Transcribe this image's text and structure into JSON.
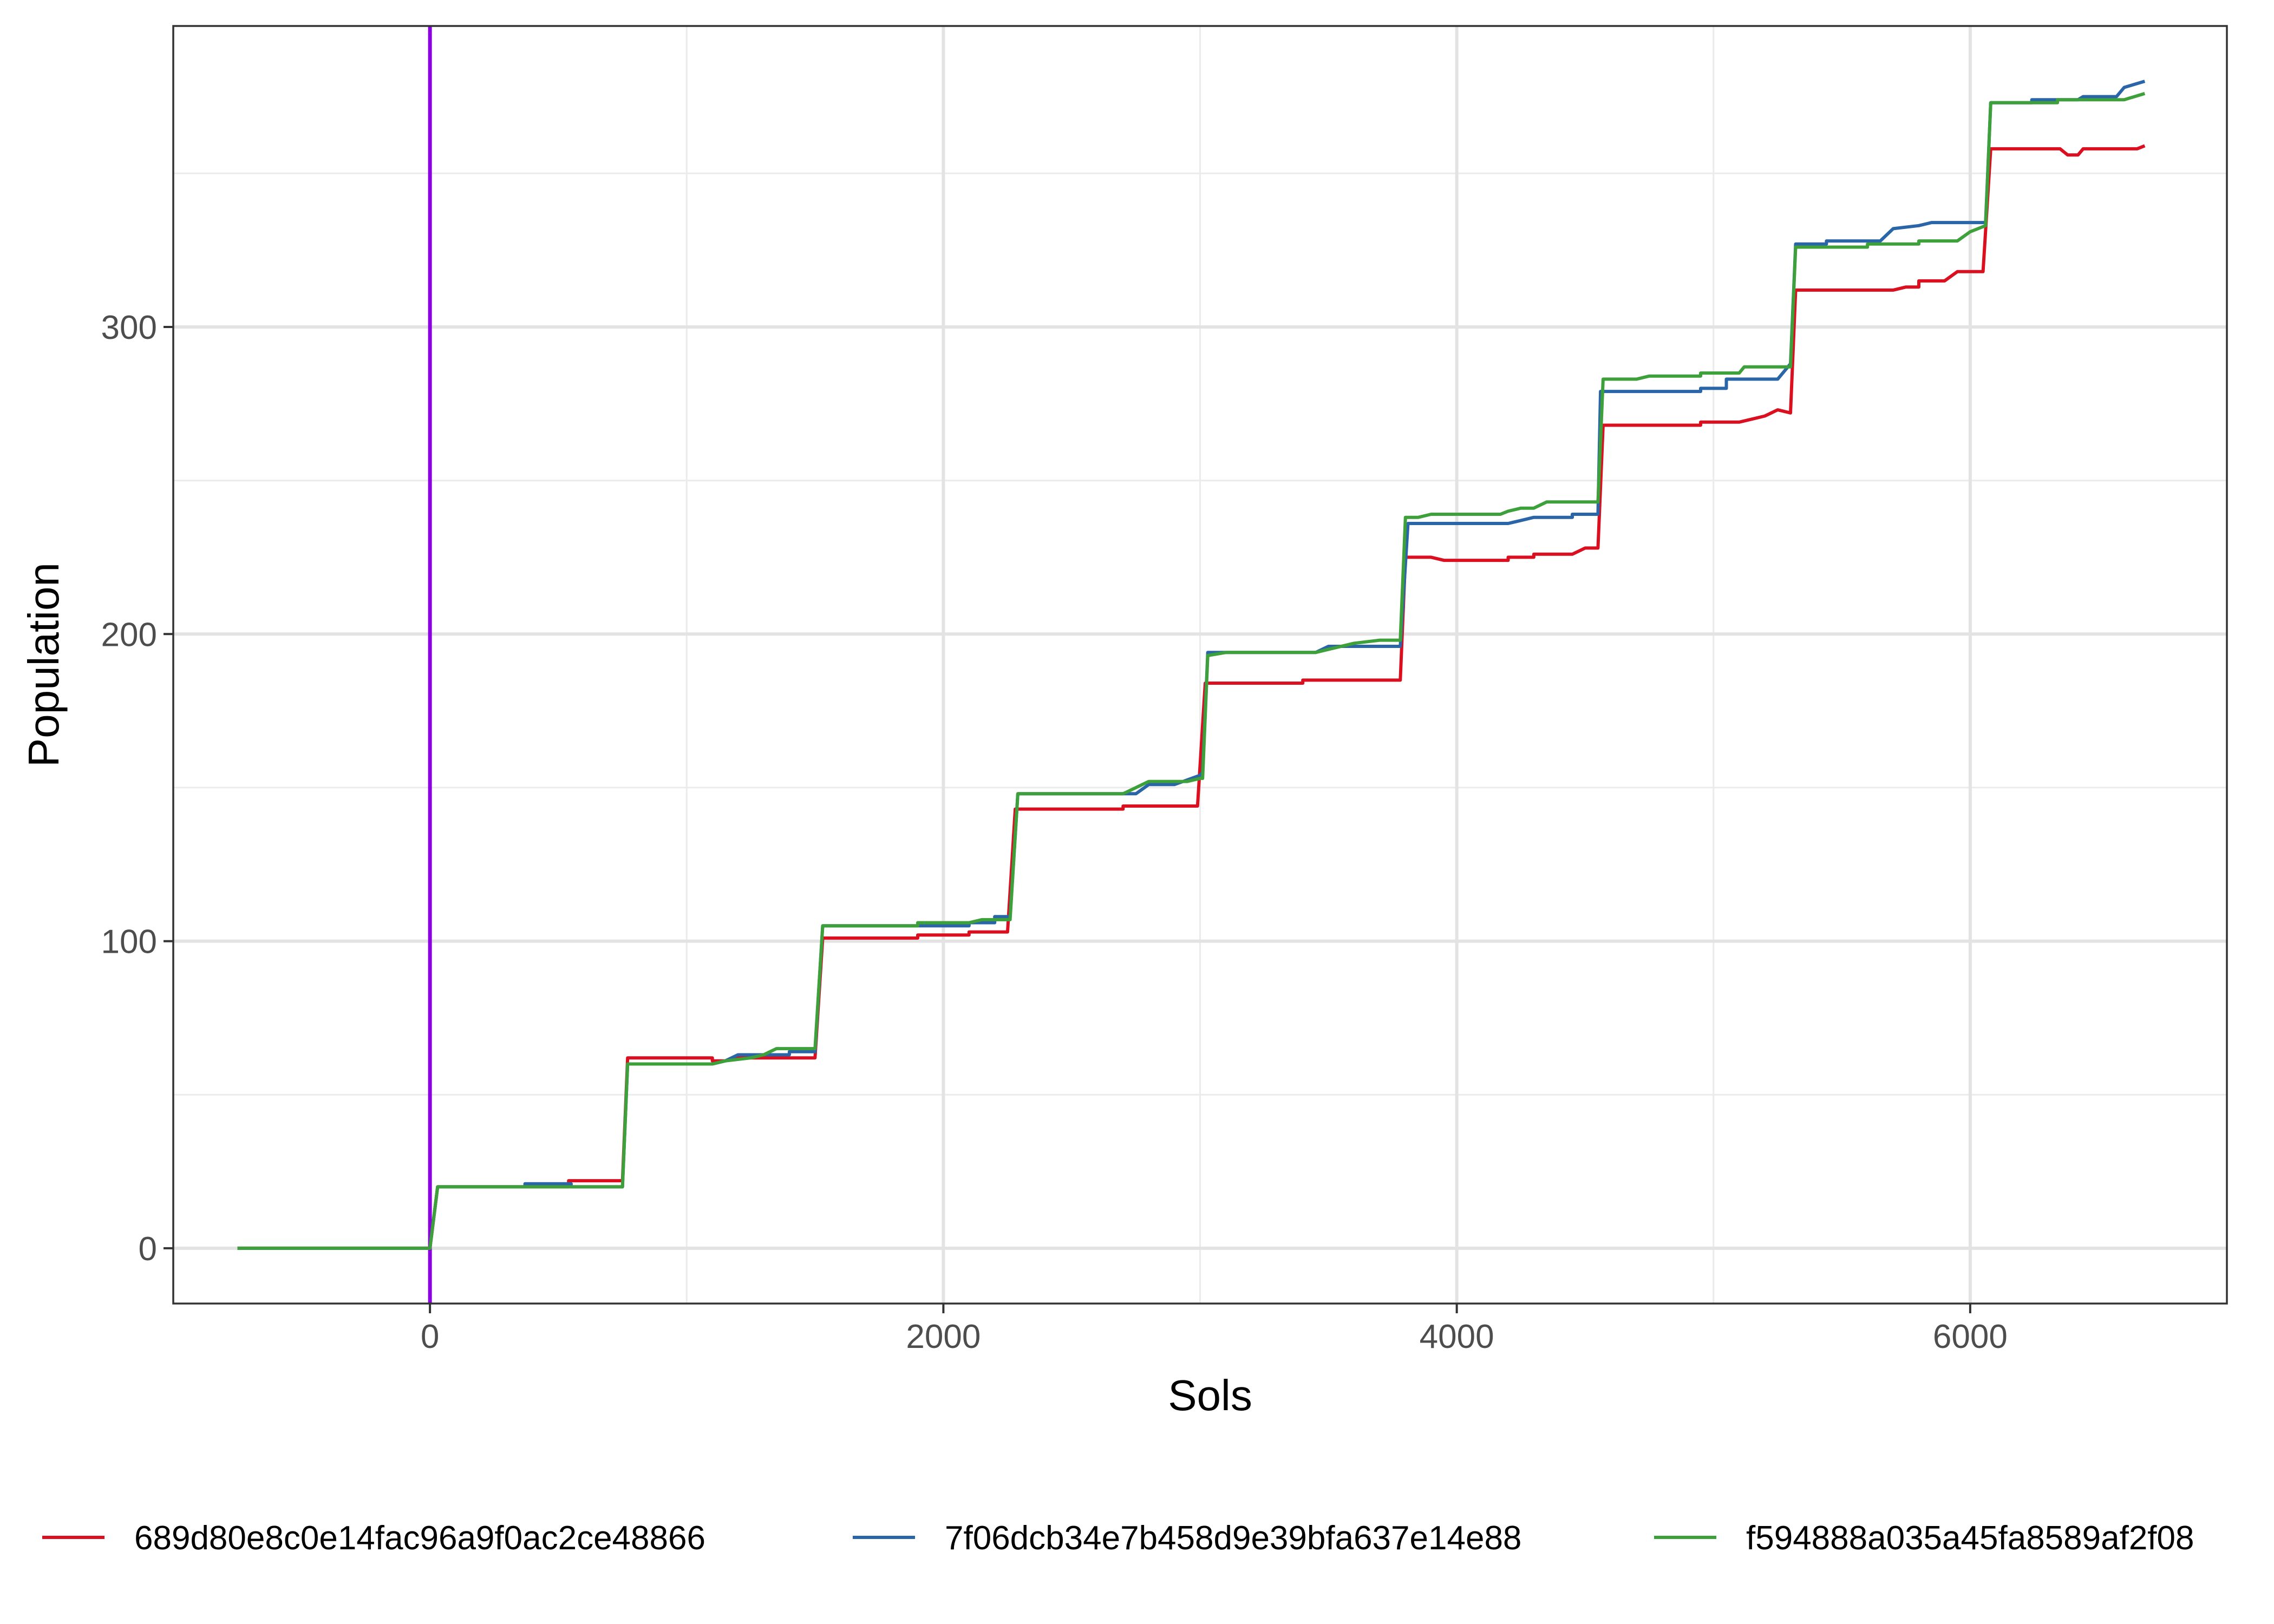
{
  "chart_data": {
    "type": "line",
    "xlabel": "Sols",
    "ylabel": "Population",
    "xlim": [
      -1000,
      7000
    ],
    "ylim": [
      -18,
      398
    ],
    "x_ticks": [
      0,
      2000,
      4000,
      6000
    ],
    "x_tick_labels": [
      "0",
      "2000",
      "4000",
      "6000"
    ],
    "y_ticks": [
      0,
      100,
      200,
      300
    ],
    "y_tick_labels": [
      "0",
      "100",
      "200",
      "300"
    ],
    "grid": true,
    "legend_position": "bottom",
    "vline": {
      "x": 0,
      "color": "#8B00E0"
    },
    "series": [
      {
        "name": "689d80e8c0e14fac96a9f0ac2ce48866",
        "color": "#DA1020",
        "points": [
          [
            -750,
            0
          ],
          [
            0,
            0
          ],
          [
            30,
            20
          ],
          [
            540,
            20
          ],
          [
            540,
            22
          ],
          [
            750,
            22
          ],
          [
            770,
            62
          ],
          [
            1100,
            62
          ],
          [
            1100,
            61
          ],
          [
            1150,
            61
          ],
          [
            1200,
            62
          ],
          [
            1500,
            62
          ],
          [
            1530,
            101
          ],
          [
            1550,
            101
          ],
          [
            1900,
            101
          ],
          [
            1900,
            102
          ],
          [
            2100,
            102
          ],
          [
            2100,
            103
          ],
          [
            2250,
            103
          ],
          [
            2280,
            143
          ],
          [
            2700,
            143
          ],
          [
            2700,
            144
          ],
          [
            2990,
            144
          ],
          [
            3020,
            184
          ],
          [
            3400,
            184
          ],
          [
            3400,
            185
          ],
          [
            3780,
            185
          ],
          [
            3800,
            225
          ],
          [
            3900,
            225
          ],
          [
            3950,
            224
          ],
          [
            4200,
            224
          ],
          [
            4200,
            225
          ],
          [
            4300,
            225
          ],
          [
            4300,
            226
          ],
          [
            4450,
            226
          ],
          [
            4500,
            228
          ],
          [
            4550,
            228
          ],
          [
            4570,
            268
          ],
          [
            4950,
            268
          ],
          [
            4950,
            269
          ],
          [
            5100,
            269
          ],
          [
            5150,
            270
          ],
          [
            5200,
            271
          ],
          [
            5250,
            273
          ],
          [
            5300,
            272
          ],
          [
            5320,
            312
          ],
          [
            5700,
            312
          ],
          [
            5750,
            313
          ],
          [
            5800,
            313
          ],
          [
            5800,
            315
          ],
          [
            5900,
            315
          ],
          [
            5950,
            318
          ],
          [
            6050,
            318
          ],
          [
            6080,
            358
          ],
          [
            6350,
            358
          ],
          [
            6380,
            356
          ],
          [
            6420,
            356
          ],
          [
            6440,
            358
          ],
          [
            6650,
            358
          ],
          [
            6680,
            359
          ]
        ]
      },
      {
        "name": "7f06dcb34e7b458d9e39bfa637e14e88",
        "color": "#2A65A8",
        "points": [
          [
            -750,
            0
          ],
          [
            0,
            0
          ],
          [
            30,
            20
          ],
          [
            370,
            20
          ],
          [
            370,
            21
          ],
          [
            550,
            21
          ],
          [
            550,
            20
          ],
          [
            750,
            20
          ],
          [
            770,
            60
          ],
          [
            1100,
            60
          ],
          [
            1150,
            61
          ],
          [
            1200,
            63
          ],
          [
            1400,
            63
          ],
          [
            1400,
            64
          ],
          [
            1500,
            64
          ],
          [
            1530,
            105
          ],
          [
            1900,
            105
          ],
          [
            1900,
            105
          ],
          [
            2100,
            105
          ],
          [
            2100,
            106
          ],
          [
            2200,
            106
          ],
          [
            2200,
            108
          ],
          [
            2260,
            108
          ],
          [
            2290,
            148
          ],
          [
            2750,
            148
          ],
          [
            2800,
            151
          ],
          [
            2900,
            151
          ],
          [
            3000,
            154
          ],
          [
            3010,
            155
          ],
          [
            3030,
            194
          ],
          [
            3450,
            194
          ],
          [
            3500,
            196
          ],
          [
            3780,
            196
          ],
          [
            3810,
            236
          ],
          [
            4200,
            236
          ],
          [
            4250,
            237
          ],
          [
            4300,
            238
          ],
          [
            4450,
            238
          ],
          [
            4450,
            239
          ],
          [
            4550,
            239
          ],
          [
            4560,
            279
          ],
          [
            4950,
            279
          ],
          [
            4950,
            280
          ],
          [
            5050,
            280
          ],
          [
            5050,
            283
          ],
          [
            5250,
            283
          ],
          [
            5300,
            288
          ],
          [
            5320,
            327
          ],
          [
            5440,
            327
          ],
          [
            5440,
            328
          ],
          [
            5650,
            328
          ],
          [
            5700,
            332
          ],
          [
            5800,
            333
          ],
          [
            5850,
            334
          ],
          [
            6060,
            334
          ],
          [
            6080,
            373
          ],
          [
            6240,
            373
          ],
          [
            6240,
            374
          ],
          [
            6420,
            374
          ],
          [
            6440,
            375
          ],
          [
            6570,
            375
          ],
          [
            6600,
            378
          ],
          [
            6680,
            380
          ]
        ]
      },
      {
        "name": "f594888a035a45fa8589af2f08",
        "color": "#3DA03A",
        "points": [
          [
            -750,
            0
          ],
          [
            0,
            0
          ],
          [
            30,
            20
          ],
          [
            750,
            20
          ],
          [
            770,
            60
          ],
          [
            1100,
            60
          ],
          [
            1150,
            61
          ],
          [
            1250,
            62
          ],
          [
            1300,
            63
          ],
          [
            1350,
            65
          ],
          [
            1500,
            65
          ],
          [
            1530,
            105
          ],
          [
            1900,
            105
          ],
          [
            1900,
            106
          ],
          [
            2100,
            106
          ],
          [
            2150,
            107
          ],
          [
            2260,
            107
          ],
          [
            2290,
            148
          ],
          [
            2700,
            148
          ],
          [
            2750,
            150
          ],
          [
            2800,
            152
          ],
          [
            2950,
            152
          ],
          [
            3000,
            153
          ],
          [
            3010,
            153
          ],
          [
            3030,
            193
          ],
          [
            3100,
            194
          ],
          [
            3450,
            194
          ],
          [
            3500,
            195
          ],
          [
            3600,
            197
          ],
          [
            3700,
            198
          ],
          [
            3780,
            198
          ],
          [
            3800,
            238
          ],
          [
            3850,
            238
          ],
          [
            3900,
            239
          ],
          [
            4170,
            239
          ],
          [
            4200,
            240
          ],
          [
            4250,
            241
          ],
          [
            4300,
            241
          ],
          [
            4350,
            243
          ],
          [
            4550,
            243
          ],
          [
            4570,
            283
          ],
          [
            4700,
            283
          ],
          [
            4750,
            284
          ],
          [
            4950,
            284
          ],
          [
            4950,
            285
          ],
          [
            5050,
            285
          ],
          [
            5100,
            285
          ],
          [
            5120,
            287
          ],
          [
            5300,
            287
          ],
          [
            5320,
            326
          ],
          [
            5600,
            326
          ],
          [
            5600,
            327
          ],
          [
            5800,
            327
          ],
          [
            5800,
            328
          ],
          [
            5950,
            328
          ],
          [
            6000,
            331
          ],
          [
            6060,
            333
          ],
          [
            6080,
            373
          ],
          [
            6340,
            373
          ],
          [
            6340,
            374
          ],
          [
            6600,
            374
          ],
          [
            6680,
            376
          ]
        ]
      }
    ]
  }
}
